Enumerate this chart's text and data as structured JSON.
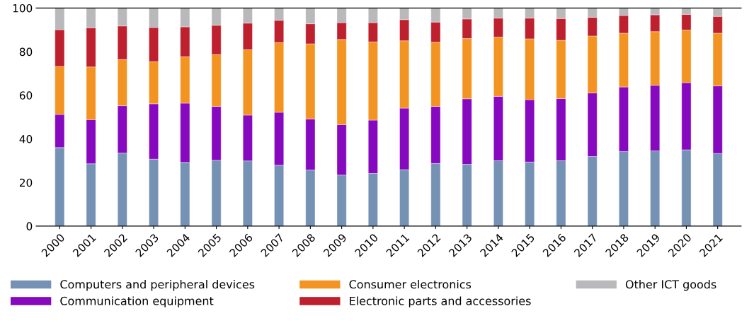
{
  "chart_data": {
    "type": "bar",
    "stacked": true,
    "categories": [
      "2000",
      "2001",
      "2002",
      "2003",
      "2004",
      "2005",
      "2006",
      "2007",
      "2008",
      "2009",
      "2010",
      "2011",
      "2012",
      "2013",
      "2014",
      "2015",
      "2016",
      "2017",
      "2018",
      "2019",
      "2020",
      "2021"
    ],
    "series": [
      {
        "name": "Computers and peripheral devices",
        "color": "#7592b5",
        "values": [
          36.0,
          28.6,
          33.5,
          30.7,
          29.2,
          30.2,
          29.9,
          27.9,
          25.7,
          23.4,
          24.1,
          25.9,
          28.7,
          28.3,
          30.0,
          29.4,
          30.0,
          31.9,
          34.2,
          34.5,
          35.0,
          33.3
        ]
      },
      {
        "name": "Communication equipment",
        "color": "#8609c0",
        "values": [
          15.2,
          20.2,
          21.7,
          25.4,
          27.2,
          24.7,
          21.0,
          24.3,
          23.5,
          23.1,
          24.5,
          28.2,
          26.2,
          30.1,
          29.5,
          28.6,
          28.5,
          29.2,
          29.6,
          30.1,
          30.8,
          31.0
        ]
      },
      {
        "name": "Consumer electronics",
        "color": "#f39322",
        "values": [
          22.0,
          24.2,
          21.2,
          19.3,
          21.3,
          23.8,
          30.0,
          32.0,
          34.4,
          39.1,
          35.9,
          30.9,
          29.4,
          27.6,
          27.2,
          27.9,
          26.7,
          26.1,
          24.7,
          24.6,
          24.1,
          24.2
        ]
      },
      {
        "name": "Electronic parts and accessories",
        "color": "#be202e",
        "values": [
          16.9,
          18.0,
          15.4,
          15.7,
          13.7,
          13.4,
          12.2,
          10.2,
          9.2,
          7.7,
          8.8,
          9.7,
          9.3,
          9.0,
          8.7,
          9.5,
          10.0,
          8.6,
          8.1,
          7.7,
          7.2,
          7.7
        ]
      },
      {
        "name": "Other ICT goods",
        "color": "#b9b9bb",
        "values": [
          9.9,
          9.0,
          8.2,
          8.9,
          8.6,
          7.9,
          6.9,
          5.6,
          7.2,
          6.7,
          6.7,
          5.3,
          6.4,
          5.0,
          4.6,
          4.6,
          4.8,
          4.2,
          3.4,
          3.1,
          2.9,
          3.8
        ]
      }
    ],
    "ylim": [
      0,
      100
    ],
    "yticks": [
      0,
      20,
      40,
      60,
      80,
      100
    ],
    "grid": false,
    "legend": "bottom"
  }
}
